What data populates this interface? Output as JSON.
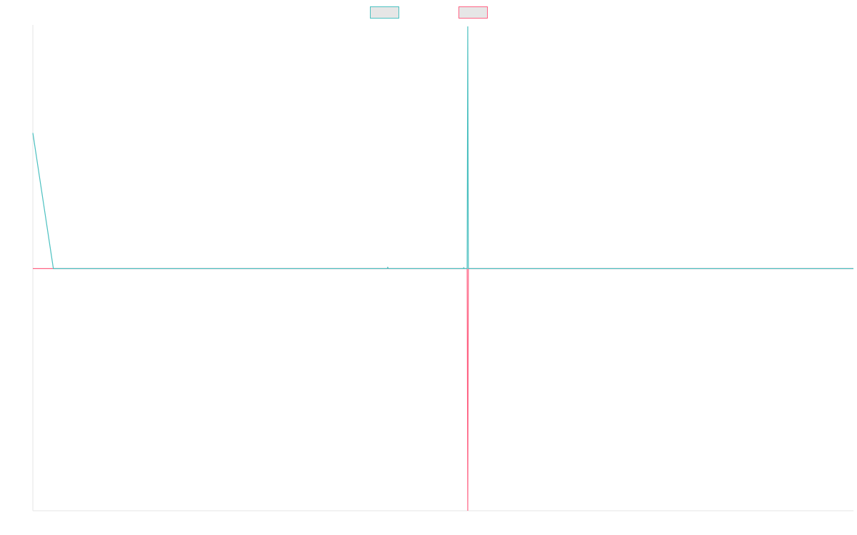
{
  "chart_data": {
    "type": "line",
    "title": "",
    "xlabel": "",
    "ylabel": "",
    "grid": false,
    "legend": {
      "placement": "top-center",
      "show_labels": false
    },
    "x": [
      0,
      1,
      2,
      3,
      4,
      5,
      6,
      7,
      8,
      9,
      10,
      11,
      12,
      13,
      14,
      15,
      16,
      17,
      18,
      19,
      20,
      21,
      22,
      23,
      24,
      25,
      26,
      27,
      28,
      29,
      30,
      31,
      32,
      33,
      34,
      35,
      36,
      37,
      38,
      39,
      40
    ],
    "ylim": [
      -1,
      1
    ],
    "series": [
      {
        "color": "#4bc0c0",
        "fill": "#e6e6e6",
        "values": [
          0.56,
          0,
          0,
          0,
          0,
          0,
          0,
          0,
          0,
          0,
          0,
          0,
          0,
          0,
          0,
          0,
          0,
          0,
          0,
          0,
          0,
          0,
          0,
          0,
          0,
          0,
          0,
          0,
          0,
          0,
          0,
          0,
          0,
          0,
          0,
          0,
          0,
          0,
          0,
          0,
          0
        ],
        "spikes": [
          {
            "x": 17.3,
            "y": 0.005
          },
          {
            "x": 21.0,
            "y": 0.005
          },
          {
            "x": 21.2,
            "y": 1.0
          }
        ]
      },
      {
        "color": "#ff6384",
        "fill": "#e6e6e6",
        "values": [
          0,
          0,
          0,
          0,
          0,
          0,
          0,
          0,
          0,
          0,
          0,
          0,
          0,
          0,
          0,
          0,
          0,
          0,
          0,
          0,
          0,
          0,
          0,
          0,
          0,
          0,
          0,
          0,
          0,
          0,
          0,
          0,
          0,
          0,
          0,
          0,
          0,
          0,
          0,
          0,
          0
        ],
        "spikes": [
          {
            "x": 21.2,
            "y": -1.0
          }
        ]
      }
    ]
  }
}
